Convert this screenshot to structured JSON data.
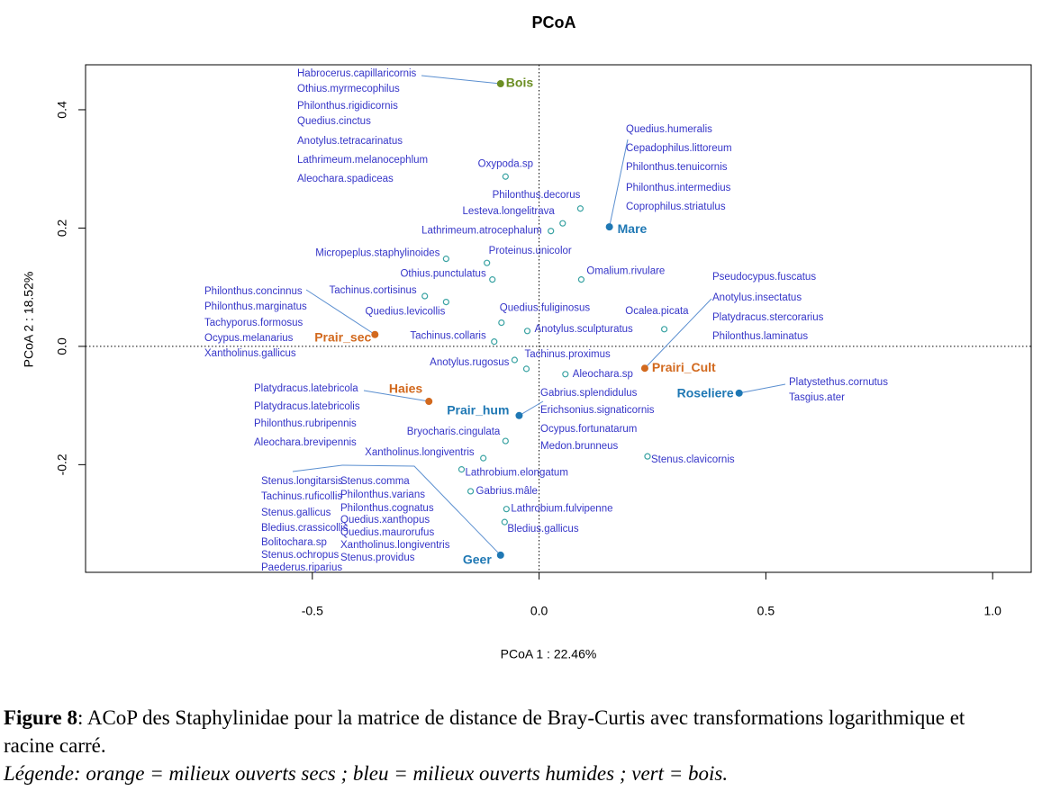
{
  "chart_data": {
    "type": "scatter",
    "title": "PCoA",
    "x_label": "PCoA 1 : 22.46%",
    "y_label": "PCoA 2 : 18.52%",
    "xlim": [
      -1.0,
      1.085
    ],
    "ylim": [
      -0.382,
      0.476
    ],
    "xticks": [
      -0.5,
      {
        "value": 0,
        "label": "0.0"
      },
      0.5,
      {
        "value": 1,
        "label": "1.0"
      }
    ],
    "yticks": [
      -0.2,
      {
        "value": 0,
        "label": "0.0"
      },
      0.2,
      0.4
    ],
    "zero_lines": true,
    "species_color": "#3aa3a3",
    "species_label_color": "#3535c8",
    "sites": [
      {
        "label": "Bois",
        "x": -0.085,
        "y": 0.444,
        "color": "#6b8e23",
        "species": [
          "Habrocerus.capillaricornis",
          "Othius.myrmecophilus",
          "Philonthus.rigidicornis",
          "Quedius.cinctus",
          "Anotylus.tetracarinatus",
          "Lathrimeum.melanocephlum",
          "Aleochara.spadiceas"
        ]
      },
      {
        "label": "Mare",
        "x": 0.155,
        "y": 0.202,
        "color": "#1f78b4",
        "species": [
          "Quedius.humeralis",
          "Cepadophilus.littoreum",
          "Philonthus.tenuicornis",
          "Philonthus.intermedius",
          "Coprophilus.striatulus"
        ]
      },
      {
        "label": "Prair_sec",
        "x": -0.362,
        "y": 0.02,
        "color": "#d2691e",
        "species": [
          "Philonthus.concinnus",
          "Philonthus.marginatus",
          "Tachyporus.formosus",
          "Ocypus.melanarius",
          "Xantholinus.gallicus"
        ]
      },
      {
        "label": "Prairi_Cult",
        "x": 0.233,
        "y": -0.037,
        "color": "#d2691e",
        "species": [
          "Pseudocypus.fuscatus",
          "Anotylus.insectatus",
          "Platydracus.stercorarius",
          "Philonthus.laminatus"
        ]
      },
      {
        "label": "Roseliere",
        "x": 0.441,
        "y": -0.079,
        "color": "#1f78b4",
        "species": [
          "Platystethus.cornutus",
          "Tasgius.ater"
        ]
      },
      {
        "label": "Haies",
        "x": -0.243,
        "y": -0.093,
        "color": "#d2691e",
        "species": [
          "Platydracus.latebricola",
          "Platydracus.latebricolis",
          "Philonthus.rubripennis",
          "Aleochara.brevipennis"
        ]
      },
      {
        "label": "Prair_hum",
        "x": -0.044,
        "y": -0.117,
        "color": "#1f78b4",
        "species": [
          "Gabrius.splendidulus",
          "Erichsonius.signaticornis",
          "Ocypus.fortunatarum",
          "Medon.brunneus"
        ]
      },
      {
        "label": "Geer",
        "x": -0.085,
        "y": -0.353,
        "color": "#1f78b4",
        "species": [
          "Stenus.longitarsis",
          "Tachinus.ruficollis",
          "Stenus.gallicus",
          "Bledius.crassicollis",
          "Bolitochara.sp",
          "Stenus.ochropus",
          "Paederus.riparius",
          "Stenus.comma",
          "Philonthus.varians",
          "Philonthus.cognatus",
          "Quedius.xanthopus",
          "Quedius.maurorufus",
          "Xantholinus.longiventris",
          "Stenus.providus"
        ]
      }
    ],
    "species": [
      {
        "label": "Oxypoda.sp",
        "x": -0.074,
        "y": 0.287
      },
      {
        "label": "Philonthus.decorus",
        "x": 0.091,
        "y": 0.233
      },
      {
        "label": "Lesteva.longelitrava",
        "x": 0.052,
        "y": 0.208
      },
      {
        "label": "Lathrimeum.atrocephalum",
        "x": 0.026,
        "y": 0.195
      },
      {
        "label": "Micropeplus.staphylinoides",
        "x": -0.205,
        "y": 0.148
      },
      {
        "label": "Proteinus.unicolor",
        "x": -0.115,
        "y": 0.141
      },
      {
        "label": "Othius.punctulatus",
        "x": -0.103,
        "y": 0.113
      },
      {
        "label": "Omalium.rivulare",
        "x": 0.093,
        "y": 0.113
      },
      {
        "label": "Tachinus.cortisinus",
        "x": -0.252,
        "y": 0.085
      },
      {
        "label": "Quedius.levicollis",
        "x": -0.205,
        "y": 0.075
      },
      {
        "label": "Quedius.fuliginosus",
        "x": -0.083,
        "y": 0.04
      },
      {
        "label": "Ocalea.picata",
        "x": 0.276,
        "y": 0.029
      },
      {
        "label": "Anotylus.sculpturatus",
        "x": -0.026,
        "y": 0.026
      },
      {
        "label": "Tachinus.collaris",
        "x": -0.099,
        "y": 0.008
      },
      {
        "label": "Anotylus.rugosus",
        "x": -0.054,
        "y": -0.023
      },
      {
        "label": "Tachinus.proximus",
        "x": -0.028,
        "y": -0.038
      },
      {
        "label": "Aleochara.sp",
        "x": 0.058,
        "y": -0.047
      },
      {
        "label": "Bryocharis.cingulata",
        "x": -0.074,
        "y": -0.16
      },
      {
        "label": "Xantholinus.longiventris",
        "x": -0.123,
        "y": -0.189
      },
      {
        "label": "Stenus.clavicornis",
        "x": 0.239,
        "y": -0.186
      },
      {
        "label": "Lathrobium.elongatum",
        "x": -0.171,
        "y": -0.208
      },
      {
        "label": "Gabrius.mâle",
        "x": -0.151,
        "y": -0.245
      },
      {
        "label": "Lathrobium.fulvipenne",
        "x": -0.072,
        "y": -0.275
      },
      {
        "label": "Bledius.gallicus",
        "x": -0.076,
        "y": -0.297
      }
    ]
  },
  "caption": {
    "figure": "Figure 8",
    "text": ": ACoP des Staphylinidae pour la matrice de distance de Bray-Curtis avec transformations logarithmique et racine carré.",
    "legend": "Légende: orange = milieux ouverts secs ; bleu = milieux ouverts humides ; vert = bois."
  }
}
